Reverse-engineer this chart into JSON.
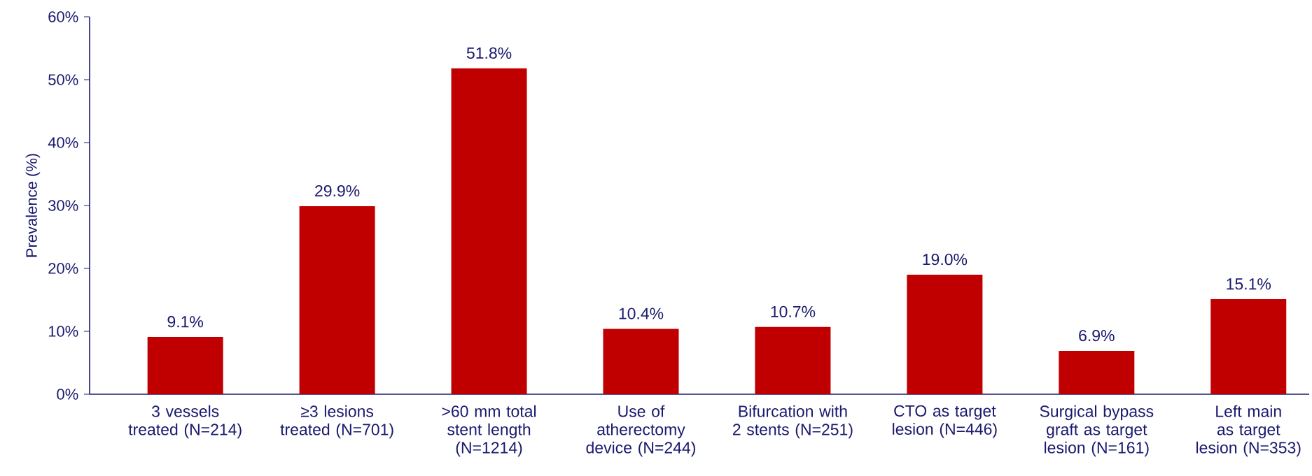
{
  "chart_data": {
    "type": "bar",
    "ylabel": "Prevalence (%)",
    "categories": [
      "3 vessels treated (N=214)",
      "≥3 lesions treated (N=701)",
      ">60 mm total stent length (N=1214)",
      "Use of atherectomy device (N=244)",
      "Bifurcation with 2 stents (N=251)",
      "CTO as target lesion (N=446)",
      "Surgical bypass graft as target lesion (N=161)",
      "Left main as target lesion (N=353)"
    ],
    "values": [
      9.1,
      29.9,
      51.8,
      10.4,
      10.7,
      19.0,
      6.9,
      15.1
    ],
    "value_labels": [
      "9.1%",
      "29.9%",
      "51.8%",
      "10.4%",
      "10.7%",
      "19.0%",
      "6.9%",
      "15.1%"
    ],
    "color": "#c00000",
    "ylim": [
      0,
      60
    ],
    "yticks": [
      {
        "value": 0,
        "label": "0%"
      },
      {
        "value": 10,
        "label": "10%"
      },
      {
        "value": 20,
        "label": "20%"
      },
      {
        "value": 30,
        "label": "30%"
      },
      {
        "value": 40,
        "label": "40%"
      },
      {
        "value": 50,
        "label": "50%"
      },
      {
        "value": 60,
        "label": "60%"
      }
    ],
    "grid": false
  }
}
